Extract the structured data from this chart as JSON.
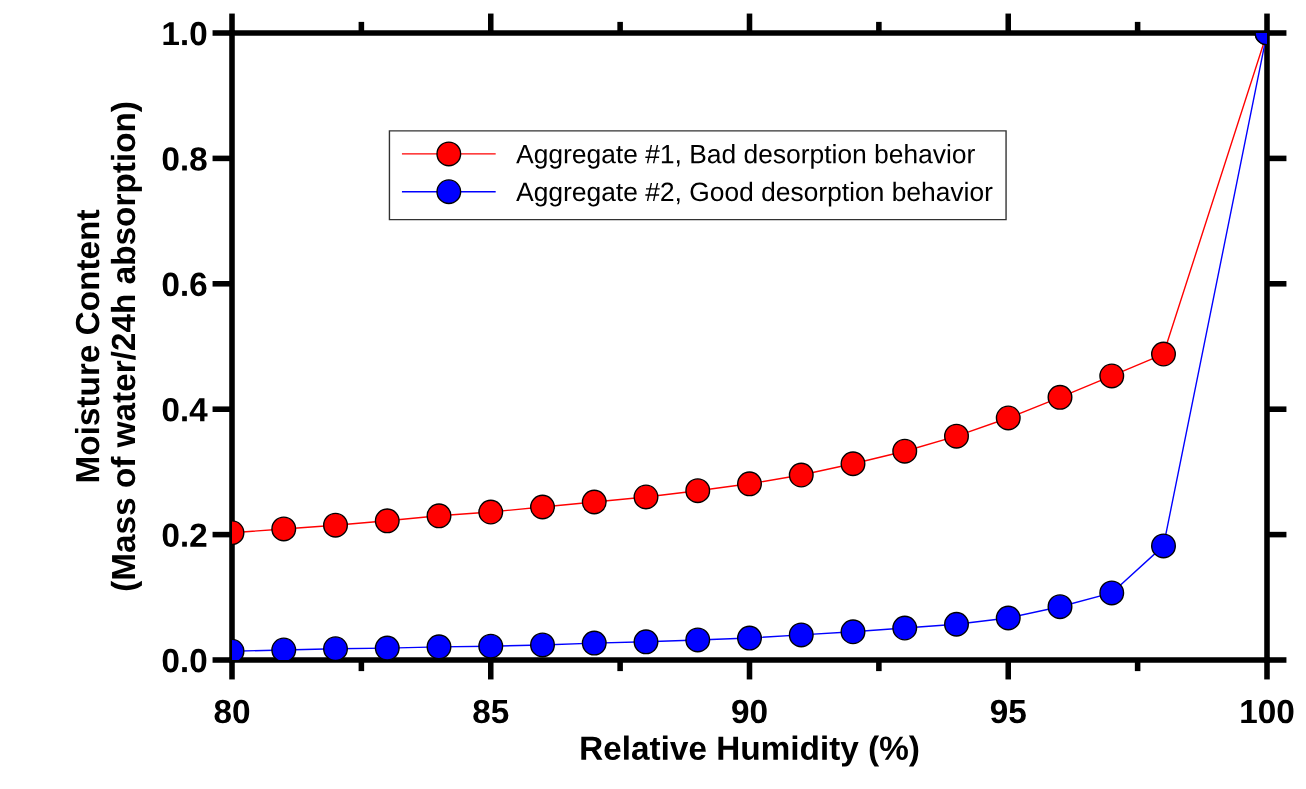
{
  "chart_data": {
    "type": "line",
    "xlabel": "Relative Humidity (%)",
    "ylabel": "Moisture Content\n(Mass of water/24h absorption)",
    "x": [
      80,
      81,
      82,
      83,
      84,
      85,
      86,
      87,
      88,
      89,
      90,
      91,
      92,
      93,
      94,
      95,
      96,
      97,
      98,
      100
    ],
    "series": [
      {
        "name": "Aggregate #1, Bad desorption behavior",
        "color": "#ff0000",
        "values": [
          0.203,
          0.209,
          0.215,
          0.222,
          0.23,
          0.236,
          0.244,
          0.252,
          0.26,
          0.27,
          0.281,
          0.295,
          0.313,
          0.333,
          0.357,
          0.386,
          0.419,
          0.453,
          0.488,
          1.0
        ]
      },
      {
        "name": "Aggregate #2, Good desorption behavior",
        "color": "#0000ff",
        "values": [
          0.014,
          0.016,
          0.018,
          0.019,
          0.021,
          0.022,
          0.024,
          0.027,
          0.029,
          0.032,
          0.035,
          0.04,
          0.045,
          0.051,
          0.057,
          0.067,
          0.085,
          0.107,
          0.182,
          1.0
        ]
      }
    ],
    "xlim": [
      80,
      100
    ],
    "xticks": [
      80,
      {
        "value": 82.5,
        "label": null
      },
      85,
      {
        "value": 87.5,
        "label": null
      },
      90,
      {
        "value": 92.5,
        "label": null
      },
      95,
      {
        "value": 97.5,
        "label": null
      },
      100
    ],
    "ylim": [
      0,
      1.0
    ],
    "yticks": [
      {
        "value": 0,
        "label": "0.0"
      },
      0.2,
      0.4,
      0.6,
      0.8,
      {
        "value": 1.0,
        "label": "1.0"
      }
    ],
    "marker": "circle",
    "line_style": "solid",
    "grid": false,
    "legend": "top"
  }
}
